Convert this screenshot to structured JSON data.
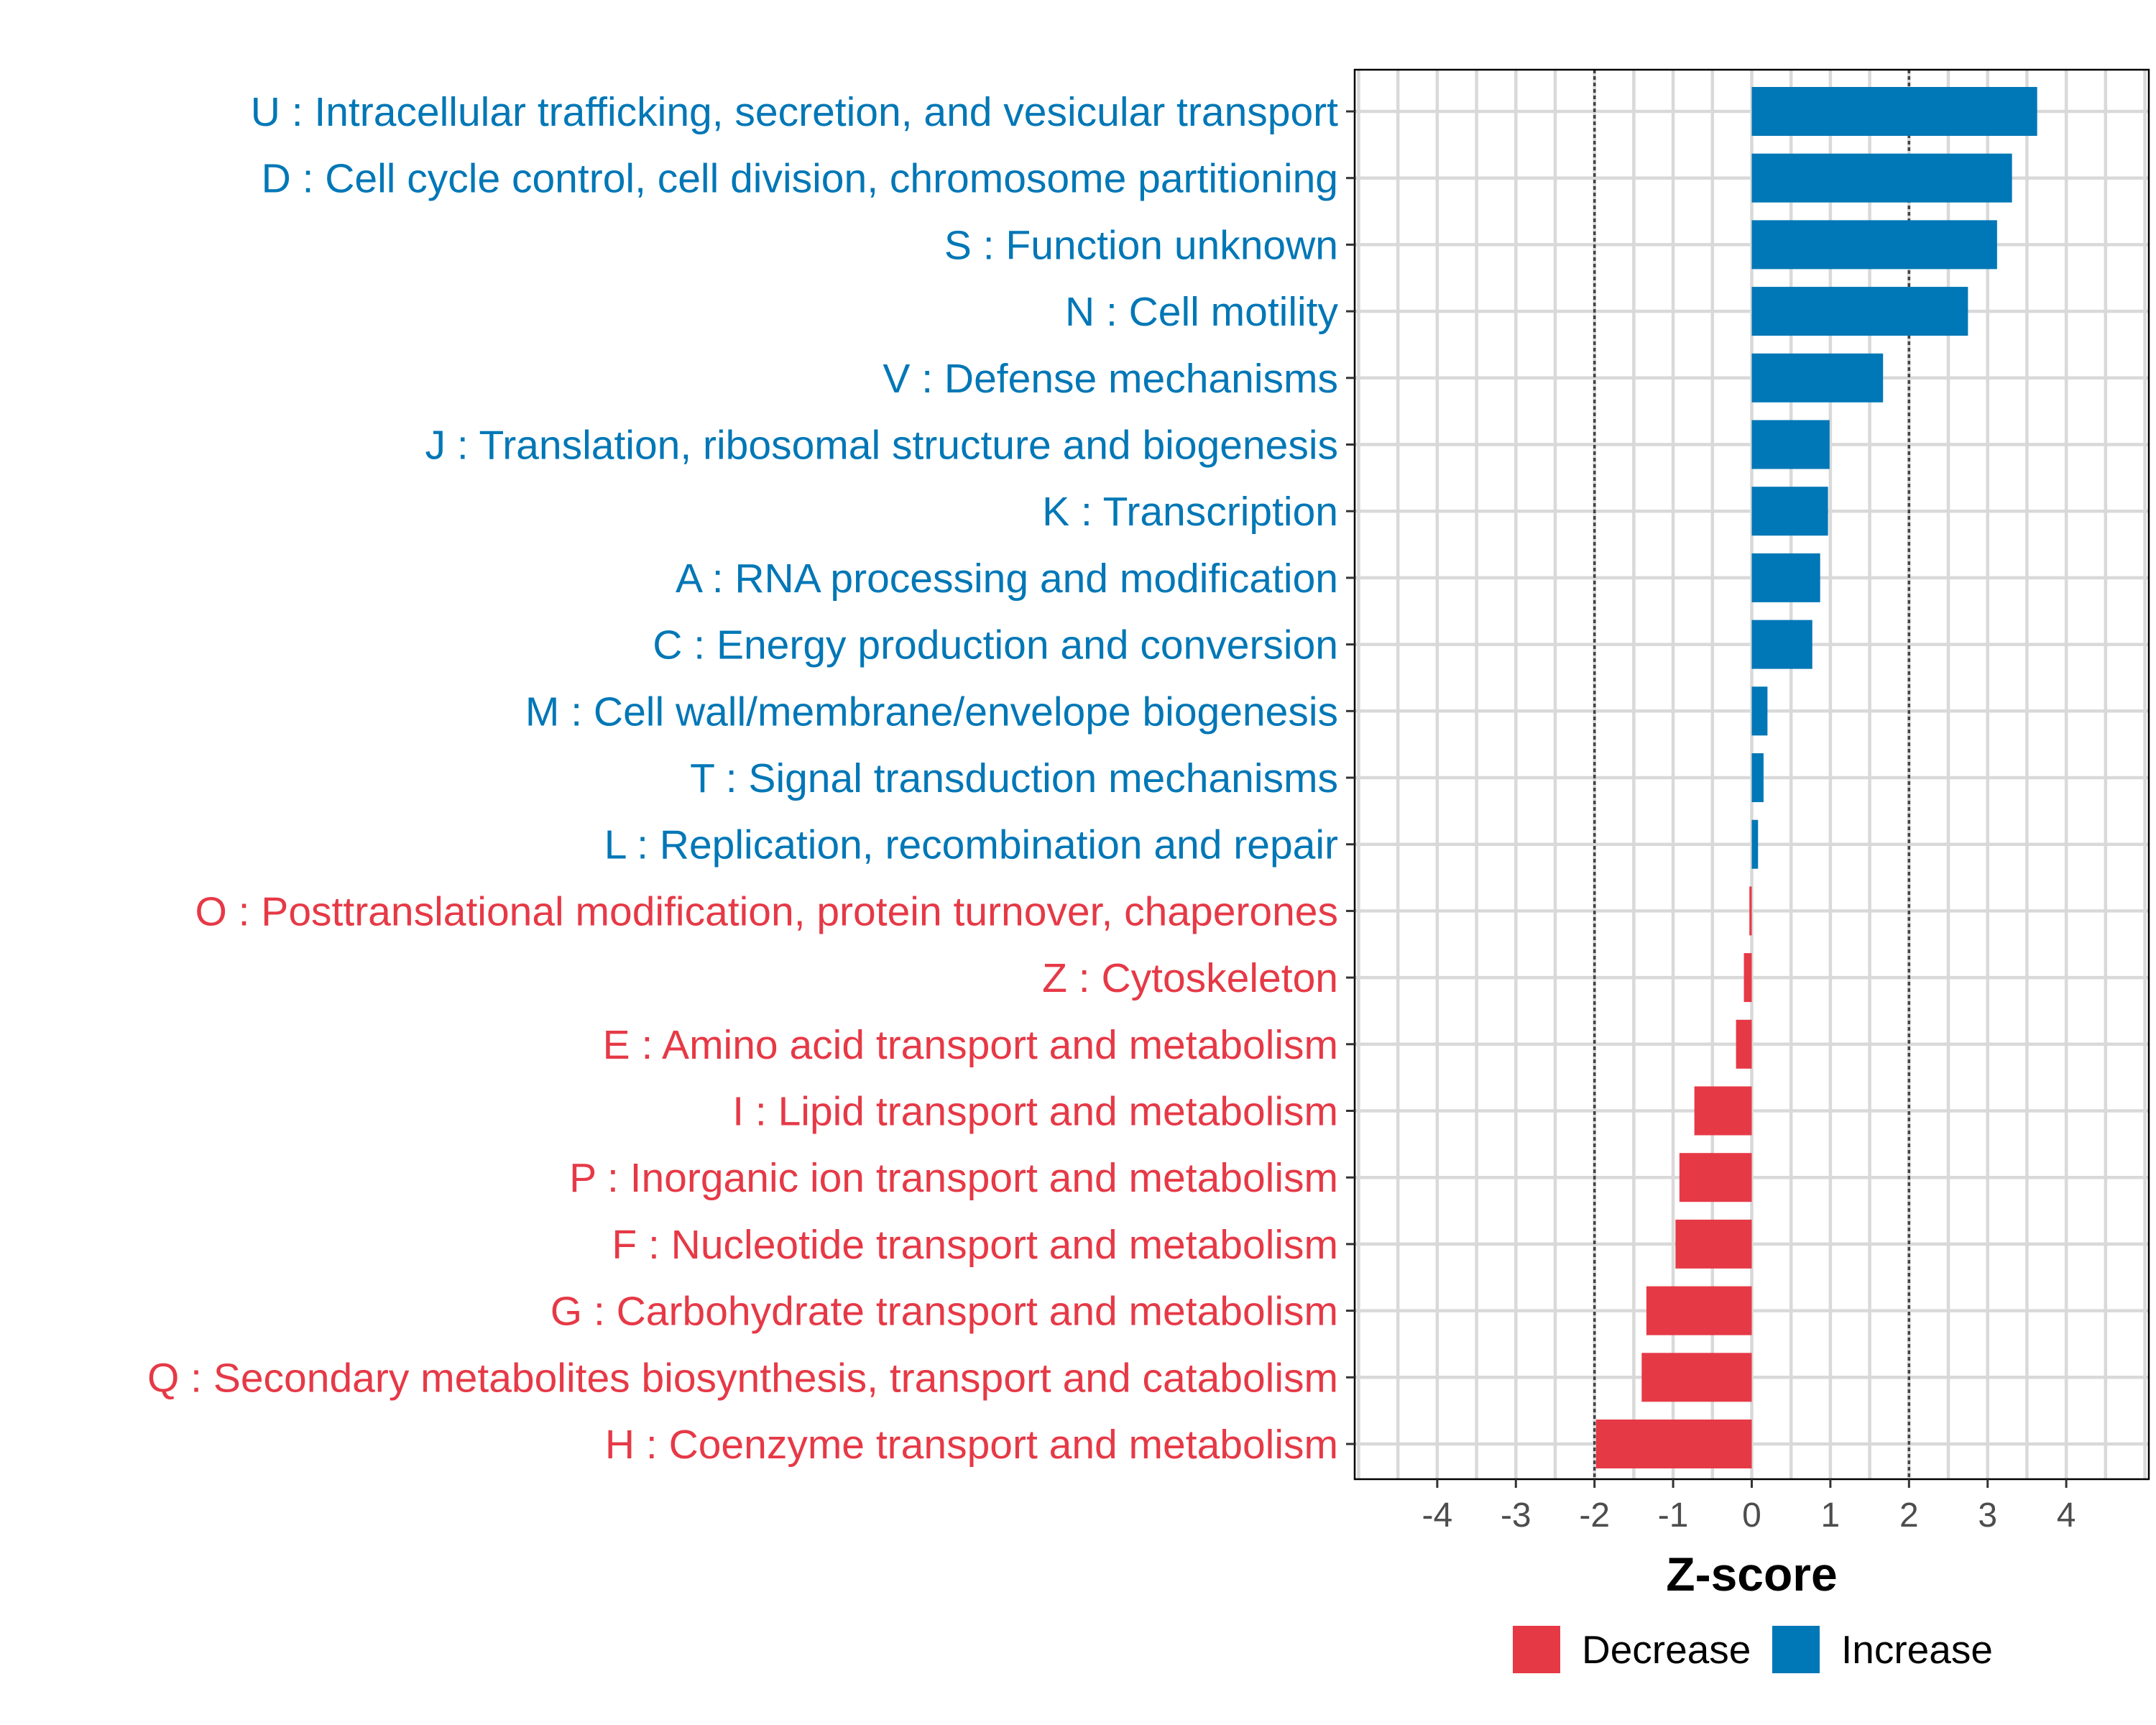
{
  "chart_data": {
    "type": "bar",
    "orientation": "horizontal",
    "title": "",
    "xlabel": "Z-score",
    "ylabel": "",
    "xlim": [
      -5.05,
      5.05
    ],
    "xticks": [
      -4,
      -3,
      -2,
      -1,
      0,
      1,
      2,
      3,
      4
    ],
    "xtick_labels": [
      "-4",
      "-3",
      "-2",
      "-1",
      "0",
      "1",
      "2",
      "3",
      "4"
    ],
    "reference_lines": [
      -2,
      2
    ],
    "grid": true,
    "legend_position": "bottom",
    "colors": {
      "Decrease": "#e63946",
      "Increase": "#0077b6"
    },
    "legend": [
      "Decrease",
      "Increase"
    ],
    "categories": [
      "U : Intracellular trafficking, secretion, and vesicular transport",
      "D : Cell cycle control, cell division, chromosome partitioning",
      "S : Function unknown",
      "N : Cell motility",
      "V : Defense mechanisms",
      "J : Translation, ribosomal structure and biogenesis",
      "K : Transcription",
      "A : RNA processing and modification",
      "C : Energy production and conversion",
      "M : Cell wall/membrane/envelope biogenesis",
      "T : Signal transduction mechanisms",
      "L : Replication, recombination and repair",
      "O : Posttranslational modification, protein turnover, chaperones",
      "Z : Cytoskeleton",
      "E : Amino acid transport and metabolism",
      "I : Lipid transport and metabolism",
      "P : Inorganic ion transport and metabolism",
      "F : Nucleotide transport and metabolism",
      "G : Carbohydrate transport and metabolism",
      "Q : Secondary metabolites biosynthesis, transport and catabolism",
      "H : Coenzyme transport and metabolism"
    ],
    "values": [
      3.63,
      3.31,
      3.12,
      2.75,
      1.67,
      0.99,
      0.97,
      0.87,
      0.77,
      0.2,
      0.15,
      0.08,
      -0.03,
      -0.1,
      -0.2,
      -0.73,
      -0.92,
      -0.97,
      -1.34,
      -1.4,
      -1.98
    ],
    "groups": [
      "Increase",
      "Increase",
      "Increase",
      "Increase",
      "Increase",
      "Increase",
      "Increase",
      "Increase",
      "Increase",
      "Increase",
      "Increase",
      "Increase",
      "Decrease",
      "Decrease",
      "Decrease",
      "Decrease",
      "Decrease",
      "Decrease",
      "Decrease",
      "Decrease",
      "Decrease"
    ]
  }
}
